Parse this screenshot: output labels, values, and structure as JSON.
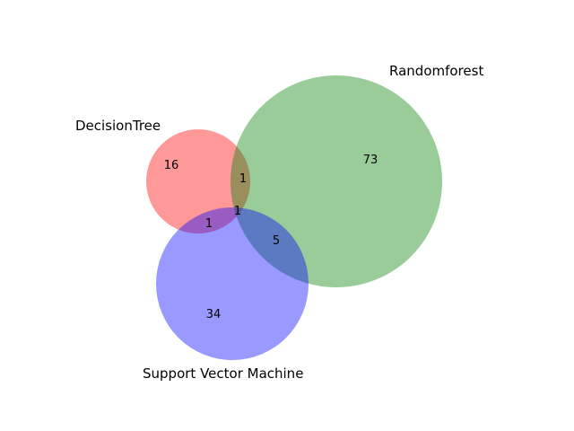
{
  "diagram": {
    "type": "venn3",
    "sets": [
      {
        "key": "A",
        "name": "DecisionTree",
        "color": "#ff0000",
        "alpha": 0.4
      },
      {
        "key": "B",
        "name": "Randomforest",
        "color": "#008000",
        "alpha": 0.4
      },
      {
        "key": "C",
        "name": "Support Vector Machine",
        "color": "#0000ff",
        "alpha": 0.4
      }
    ],
    "regions": {
      "A_only": "16",
      "B_only": "73",
      "C_only": "34",
      "AB": "1",
      "AC": "1",
      "BC": "5",
      "ABC": "1"
    }
  }
}
